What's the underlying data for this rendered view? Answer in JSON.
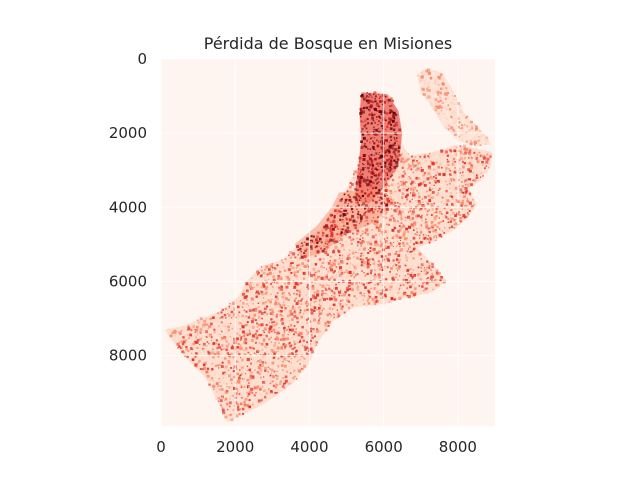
{
  "chart_data": {
    "type": "heatmap",
    "title": "Pérdida de Bosque en Misiones",
    "xlabel": "",
    "ylabel": "",
    "xlim": [
      0,
      9000
    ],
    "ylim": [
      9900,
      0
    ],
    "x_ticks": [
      "0",
      "2000",
      "4000",
      "6000",
      "8000"
    ],
    "y_ticks": [
      "0",
      "2000",
      "4000",
      "6000",
      "8000"
    ],
    "x_tick_values": [
      0,
      2000,
      4000,
      6000,
      8000
    ],
    "y_tick_values": [
      0,
      2000,
      4000,
      6000,
      8000
    ],
    "colormap": "Reds",
    "colors": {
      "background": "#fff5f0",
      "light": "#fdd7c6",
      "mid": "#fb8a6a",
      "strong": "#e32f27",
      "dark": "#a50f15",
      "darkest": "#67000d"
    },
    "grid": true,
    "legend": "none"
  }
}
